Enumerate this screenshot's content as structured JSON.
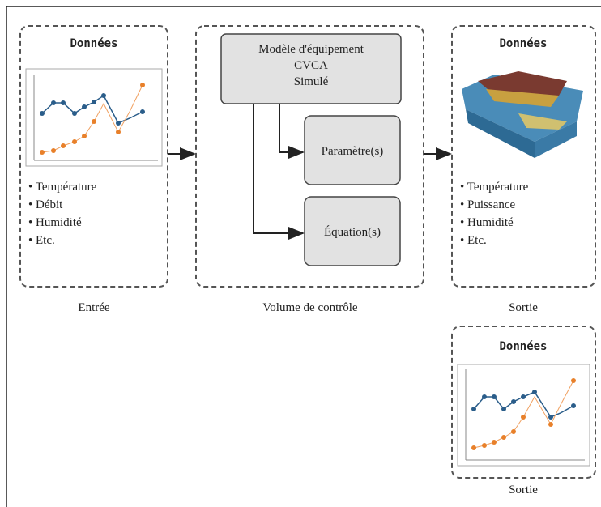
{
  "input": {
    "title": "Données",
    "items": [
      "• Température",
      "• Débit",
      "• Humidité",
      "• Etc."
    ],
    "caption": "Entrée"
  },
  "control_volume": {
    "model": [
      "Modèle d'équipement",
      "CVCA",
      "Simulé"
    ],
    "parameters": "Paramètre(s)",
    "equations": "Équation(s)",
    "caption": "Volume de contrôle"
  },
  "output": {
    "title": "Données",
    "items": [
      "• Température",
      "• Puissance",
      "• Humidité",
      "• Etc."
    ],
    "caption": "Sortie"
  },
  "output_2": {
    "title": "Données",
    "caption": "Sortie"
  }
}
